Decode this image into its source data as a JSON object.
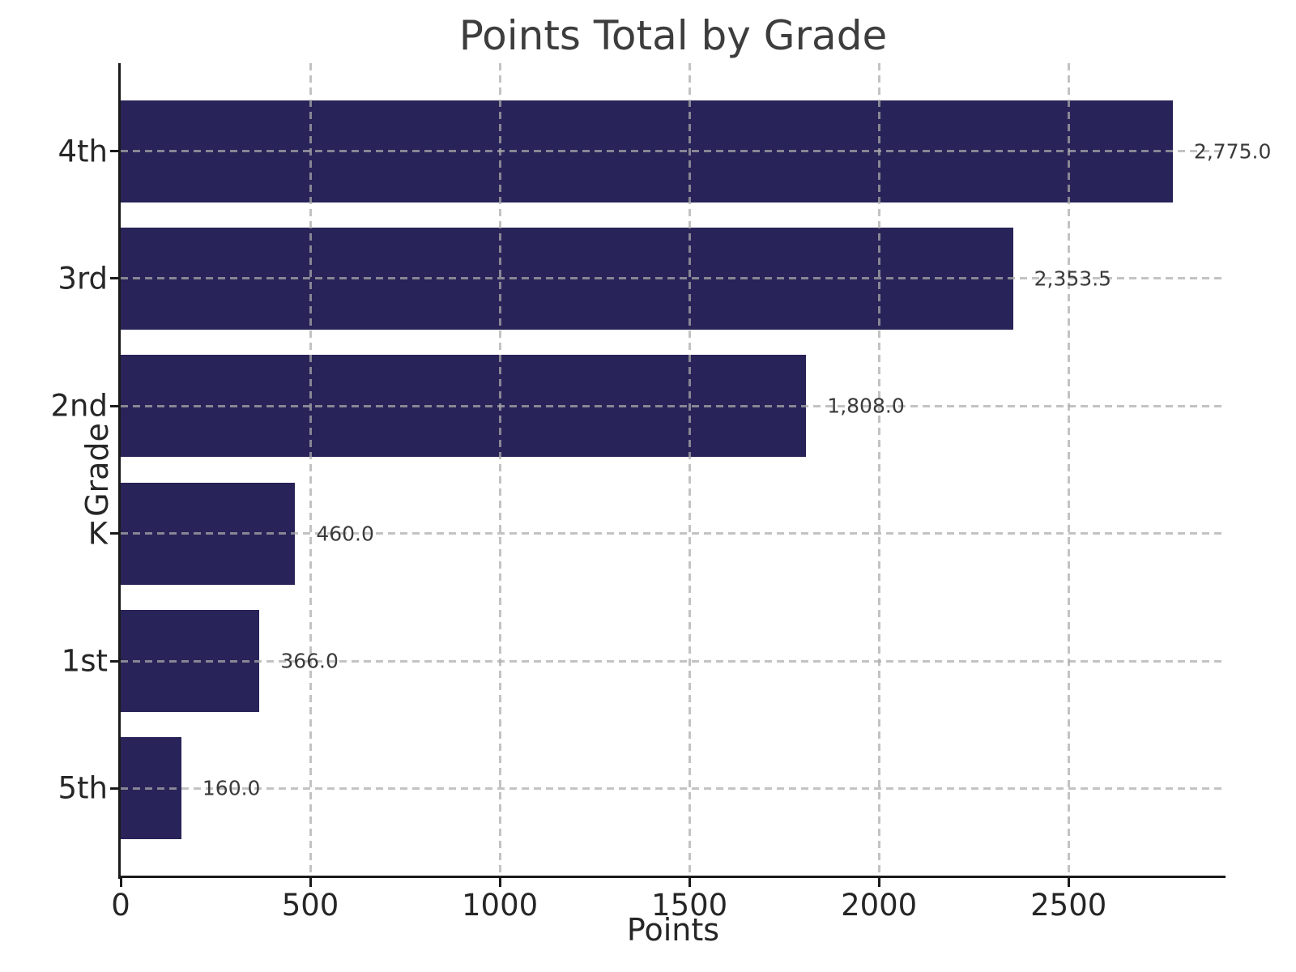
{
  "chart_data": {
    "type": "bar",
    "orientation": "horizontal",
    "title": "Points Total by Grade",
    "xlabel": "Points",
    "ylabel": "Grade",
    "categories": [
      "4th",
      "3rd",
      "2nd",
      "K",
      "1st",
      "5th"
    ],
    "series": [
      {
        "name": "Points Total",
        "values": [
          2775.0,
          2353.5,
          1808.0,
          460.0,
          366.0,
          160.0
        ]
      }
    ],
    "values": [
      2775.0,
      2353.5,
      1808.0,
      460.0,
      366.0,
      160.0
    ],
    "value_labels": [
      "2,775.0",
      "2,353.5",
      "1,808.0",
      "460.0",
      "366.0",
      "160.0"
    ],
    "xlim": [
      0,
      2914
    ],
    "xticks": [
      0,
      500,
      1000,
      1500,
      2000,
      2500
    ],
    "xtick_labels": [
      "0",
      "500",
      "1000",
      "1500",
      "2000",
      "2500"
    ],
    "grid": true,
    "grid_style": "dashed",
    "legend": false,
    "colors": {
      "bar": "#282358",
      "grid": "#c9c9c9",
      "axis": "#1a1a1a",
      "title_text": "#3d3d3d",
      "tick_text": "#262626",
      "value_text": "#3a3a3a"
    }
  }
}
